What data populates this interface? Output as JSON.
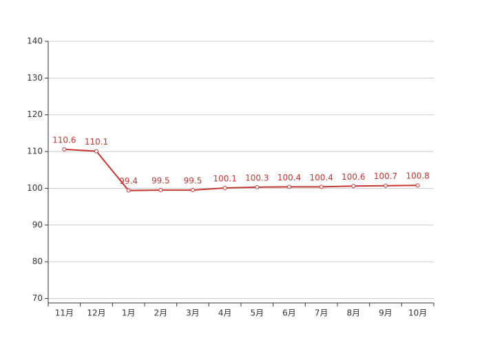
{
  "chart_data": {
    "type": "line",
    "categories": [
      "11月",
      "12月",
      "1月",
      "2月",
      "3月",
      "4月",
      "5月",
      "6月",
      "7月",
      "8月",
      "9月",
      "10月"
    ],
    "series": [
      {
        "color": "#c23531",
        "values": [
          110.6,
          110.1,
          99.4,
          99.5,
          99.5,
          100.1,
          100.3,
          100.4,
          100.4,
          100.6,
          100.7,
          100.8
        ]
      }
    ],
    "ylim": [
      68.8,
      140
    ],
    "yticks": [
      70,
      80,
      90,
      100,
      110,
      120,
      130,
      140
    ],
    "grid": true
  }
}
